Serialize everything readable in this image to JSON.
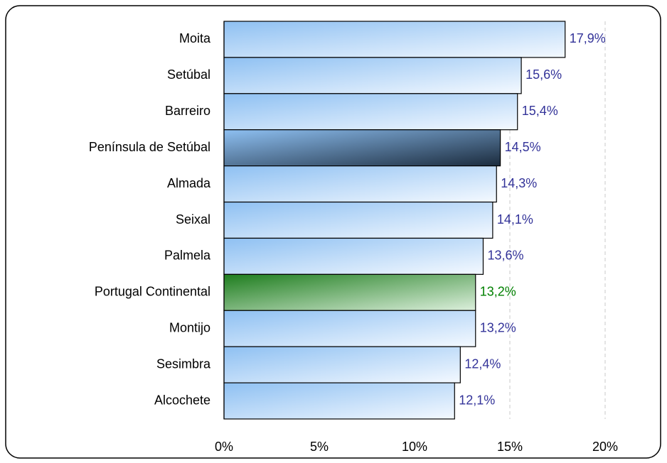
{
  "chart_data": {
    "type": "barh",
    "categories": [
      "Moita",
      "Setúbal",
      "Barreiro",
      "Península de Setúbal",
      "Almada",
      "Seixal",
      "Palmela",
      "Portugal Continental",
      "Montijo",
      "Sesimbra",
      "Alcochete"
    ],
    "values": [
      17.9,
      15.6,
      15.4,
      14.5,
      14.3,
      14.1,
      13.6,
      13.2,
      13.2,
      12.4,
      12.1
    ],
    "value_labels": [
      "17,9%",
      "15,6%",
      "15,4%",
      "14,5%",
      "14,3%",
      "14,1%",
      "13,6%",
      "13,2%",
      "13,2%",
      "12,4%",
      "12,1%"
    ],
    "colors": [
      "#8ec0f2",
      "#8ec0f2",
      "#8ec0f2",
      "#1b2b3d",
      "#8ec0f2",
      "#8ec0f2",
      "#8ec0f2",
      "#1e7d1e",
      "#8ec0f2",
      "#8ec0f2",
      "#8ec0f2"
    ],
    "value_label_colors": [
      "#333399",
      "#333399",
      "#333399",
      "#333399",
      "#333399",
      "#333399",
      "#333399",
      "#008000",
      "#333399",
      "#333399",
      "#333399"
    ],
    "xlim": [
      0,
      20
    ],
    "xticks": [
      {
        "value": 0,
        "label": "0%"
      },
      {
        "value": 5,
        "label": "5%"
      },
      {
        "value": 10,
        "label": "10%"
      },
      {
        "value": 15,
        "label": "15%"
      },
      {
        "value": 20,
        "label": "20%"
      }
    ],
    "grid": true
  }
}
